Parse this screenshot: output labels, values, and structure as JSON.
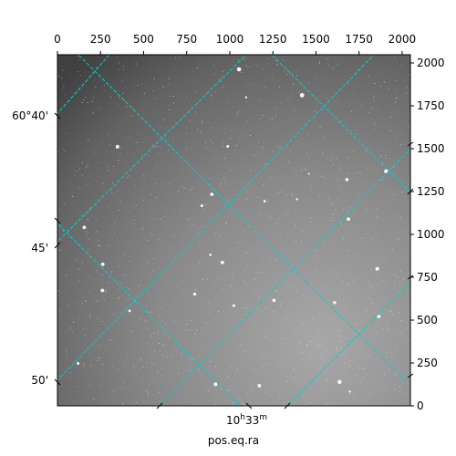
{
  "chart_data": {
    "type": "scatter",
    "description_free": true,
    "pixel_axes": {
      "x_range": [
        0,
        2048
      ],
      "y_range": [
        0,
        2048
      ],
      "x_ticks": [
        0,
        250,
        500,
        750,
        1000,
        1250,
        1500,
        1750,
        2000
      ],
      "y_ticks": [
        0,
        250,
        500,
        750,
        1000,
        1250,
        1500,
        1750,
        2000
      ],
      "x_tick_labels": [
        "0",
        "250",
        "500",
        "750",
        "1000",
        "1250",
        "1500",
        "1750",
        "2000"
      ],
      "y_tick_labels": [
        "0",
        "250",
        "500",
        "750",
        "1000",
        "1250",
        "1500",
        "1750",
        "2000"
      ]
    },
    "world_axes": {
      "dec_tick_labels": [
        "60°40'",
        "45'",
        "50'"
      ],
      "ra_tick_label_main": "10",
      "ra_tick_label_h": "h",
      "ra_tick_label_rest": "33",
      "ra_tick_label_m": "m",
      "xlabel": "pos.eq.ra"
    },
    "grid": true,
    "grid_color": "#00c8c8",
    "image_colormap": "gray"
  }
}
